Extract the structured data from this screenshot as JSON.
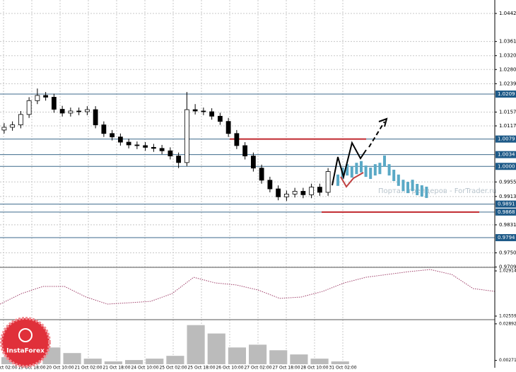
{
  "chart_data": {
    "type": "candlestick",
    "open": [
      1.0105,
      1.0113,
      1.012,
      1.015,
      1.019,
      1.0205,
      1.02,
      1.0165,
      1.0154,
      1.016,
      1.0158,
      1.0164,
      1.012,
      1.0095,
      1.0085,
      1.007,
      1.0062,
      1.006,
      1.0055,
      1.0052,
      1.0045,
      1.003,
      1.0011,
      1.0164,
      1.016,
      1.0158,
      1.0145,
      1.013,
      1.0095,
      1.006,
      1.003,
      0.9995,
      0.996,
      0.9935,
      0.9912,
      0.992,
      0.9928,
      0.9918,
      0.994,
      0.9925
    ],
    "high": [
      1.0125,
      1.013,
      1.016,
      1.02,
      1.0225,
      1.0215,
      1.021,
      1.0175,
      1.017,
      1.017,
      1.0174,
      1.0174,
      1.013,
      1.0105,
      1.0095,
      1.008,
      1.0072,
      1.007,
      1.0065,
      1.0062,
      1.0055,
      1.004,
      1.0215,
      1.018,
      1.017,
      1.0168,
      1.0155,
      1.014,
      1.0105,
      1.007,
      1.004,
      1.0005,
      0.997,
      0.9945,
      0.993,
      0.9938,
      0.9938,
      0.995,
      0.995,
      0.9995
    ],
    "low": [
      1.0095,
      1.0103,
      1.011,
      1.014,
      1.018,
      1.019,
      1.0155,
      1.0144,
      1.0144,
      1.0148,
      1.0148,
      1.011,
      1.0085,
      1.0075,
      1.006,
      1.0052,
      1.005,
      1.0045,
      1.0042,
      1.0035,
      1.002,
      0.9995,
      1.0001,
      1.015,
      1.0148,
      1.0135,
      1.012,
      1.0085,
      1.005,
      1.002,
      0.9985,
      0.995,
      0.9925,
      0.9902,
      0.99,
      0.991,
      0.9908,
      0.9908,
      0.9915,
      0.9915
    ],
    "close": [
      1.0113,
      1.012,
      1.015,
      1.019,
      1.0205,
      1.02,
      1.0165,
      1.0154,
      1.016,
      1.0158,
      1.0164,
      1.012,
      1.0095,
      1.0085,
      1.007,
      1.0062,
      1.006,
      1.0055,
      1.0052,
      1.0045,
      1.003,
      1.0011,
      1.0164,
      1.016,
      1.0158,
      1.0145,
      1.013,
      1.0095,
      1.006,
      1.003,
      0.9995,
      0.996,
      0.9935,
      0.9912,
      0.992,
      0.9928,
      0.9918,
      0.994,
      0.9925,
      0.9985
    ],
    "forecast": [
      0.996,
      0.998,
      0.999,
      0.9984,
      0.9994,
      0.9999,
      0.9986,
      0.998,
      0.999,
      0.9994,
      1.0015,
      0.999,
      0.9974,
      0.996,
      0.9945,
      0.9939,
      0.9945,
      0.9933,
      0.9929,
      0.9925
    ],
    "forecast_color": "#5aa9c6",
    "ylim": [
      0.97082,
      1.04809
    ],
    "yticks": [
      {
        "value": 1.0442,
        "label": "1.04420"
      },
      {
        "value": 1.0361,
        "label": "1.03610"
      },
      {
        "value": 1.032,
        "label": "1.03200"
      },
      {
        "value": 1.028,
        "label": "1.02800"
      },
      {
        "value": 1.0239,
        "label": "1.02390"
      },
      {
        "value": 1.0157,
        "label": "1.01570"
      },
      {
        "value": 1.0117,
        "label": "1.01170"
      },
      {
        "value": 0.9955,
        "label": "0.99550"
      },
      {
        "value": 0.9913,
        "label": "0.99130"
      },
      {
        "value": 0.9831,
        "label": "0.98310"
      },
      {
        "value": 0.975,
        "label": "0.97500"
      },
      {
        "value": 0.9709,
        "label": "0.97090"
      }
    ],
    "levels": [
      1.0209,
      1.0079,
      1.0034,
      {
        "value": 1,
        "label": "1.0000"
      },
      0.9891,
      0.9868,
      0.9794
    ],
    "red_lines": [
      1.0079,
      0.9868
    ],
    "x_labels": [
      "19 Oct 02:00",
      "19 Oct 18:00",
      "20 Oct 10:00",
      "21 Oct 02:00",
      "21 Oct 18:00",
      "24 Oct 10:00",
      "25 Oct 02:00",
      "25 Oct 18:00",
      "26 Oct 10:00",
      "27 Oct 02:00",
      "27 Oct 18:00",
      "28 Oct 10:00",
      "31 Oct 02:00"
    ],
    "watermark": "Портал трейдеров - ForTrader.ru",
    "logo": "InstaForex",
    "oscillator": {
      "values": [
        1.02653,
        1.02736,
        1.02792,
        1.02792,
        1.02709,
        1.02653,
        1.02664,
        1.02675,
        1.02736,
        1.02864,
        1.0282,
        1.02803,
        1.02764,
        1.02698,
        1.02709,
        1.02753,
        1.0282,
        1.02864,
        1.02886,
        1.02908,
        1.02925,
        1.02886,
        1.02775,
        1.02753
      ],
      "ylim": [
        1.02531,
        1.02931
      ],
      "yticks": [
        1.02914,
        1.02559
      ],
      "color": "#a0406a"
    },
    "histogram": {
      "values": [
        0.005,
        0.01,
        0.012,
        0.008,
        0.004,
        0.002,
        0.003,
        0.004,
        0.006,
        0.028,
        0.022,
        0.012,
        0.014,
        0.01,
        0.007,
        0.004,
        0.002,
        0,
        0,
        0,
        0,
        0,
        0,
        0
      ],
      "ylim": [
        0,
        0.0319
      ],
      "yticks": [
        0.02892,
        0.00271
      ],
      "color": "#bbbbbb"
    }
  }
}
